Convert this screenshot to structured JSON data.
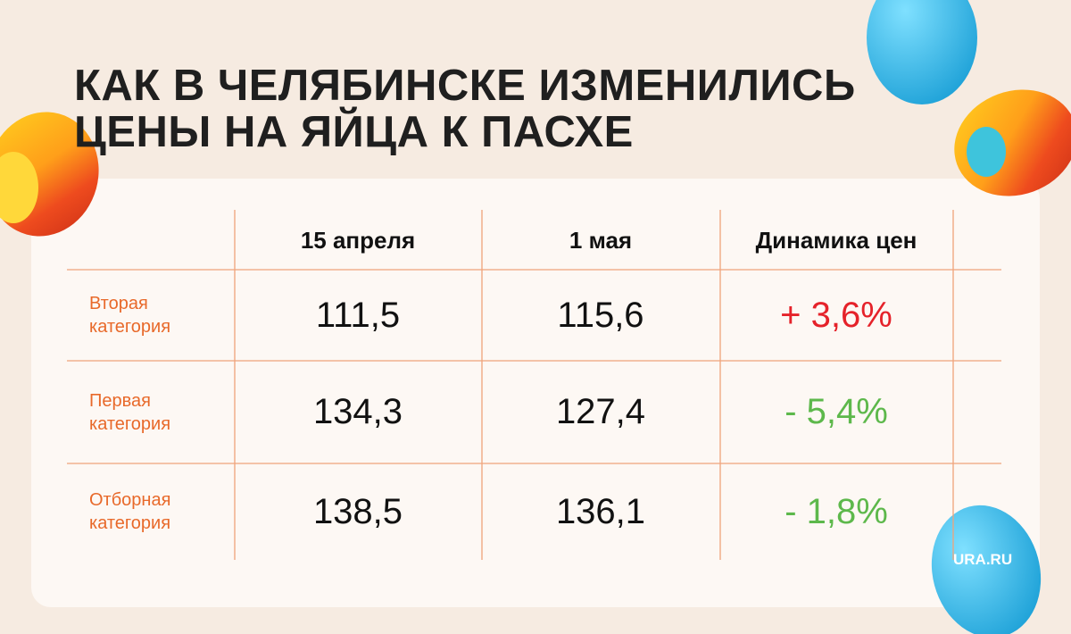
{
  "header": {
    "title": [
      "КАК В ЧЕЛЯБИНСКЕ ИЗМЕНИЛИСЬ",
      "ЦЕНЫ НА ЯЙЦА К ПАСХЕ"
    ]
  },
  "table": {
    "columns": [
      "15 апреля",
      "1 мая",
      "Динамика цен"
    ],
    "rows": [
      {
        "label": "Вторая категория",
        "cells": [
          "111,5",
          "115,6",
          "+ 3,6%"
        ],
        "color": "#e5222a"
      },
      {
        "label": "Первая категория",
        "cells": [
          "134,3",
          "127,4",
          "- 5,4%"
        ],
        "color": "#5db84b"
      },
      {
        "label": "Отборная категория",
        "cells": [
          "138,5",
          "136,1",
          "- 1,8%"
        ],
        "color": "#5db84b"
      }
    ]
  },
  "logo": "URA.RU"
}
